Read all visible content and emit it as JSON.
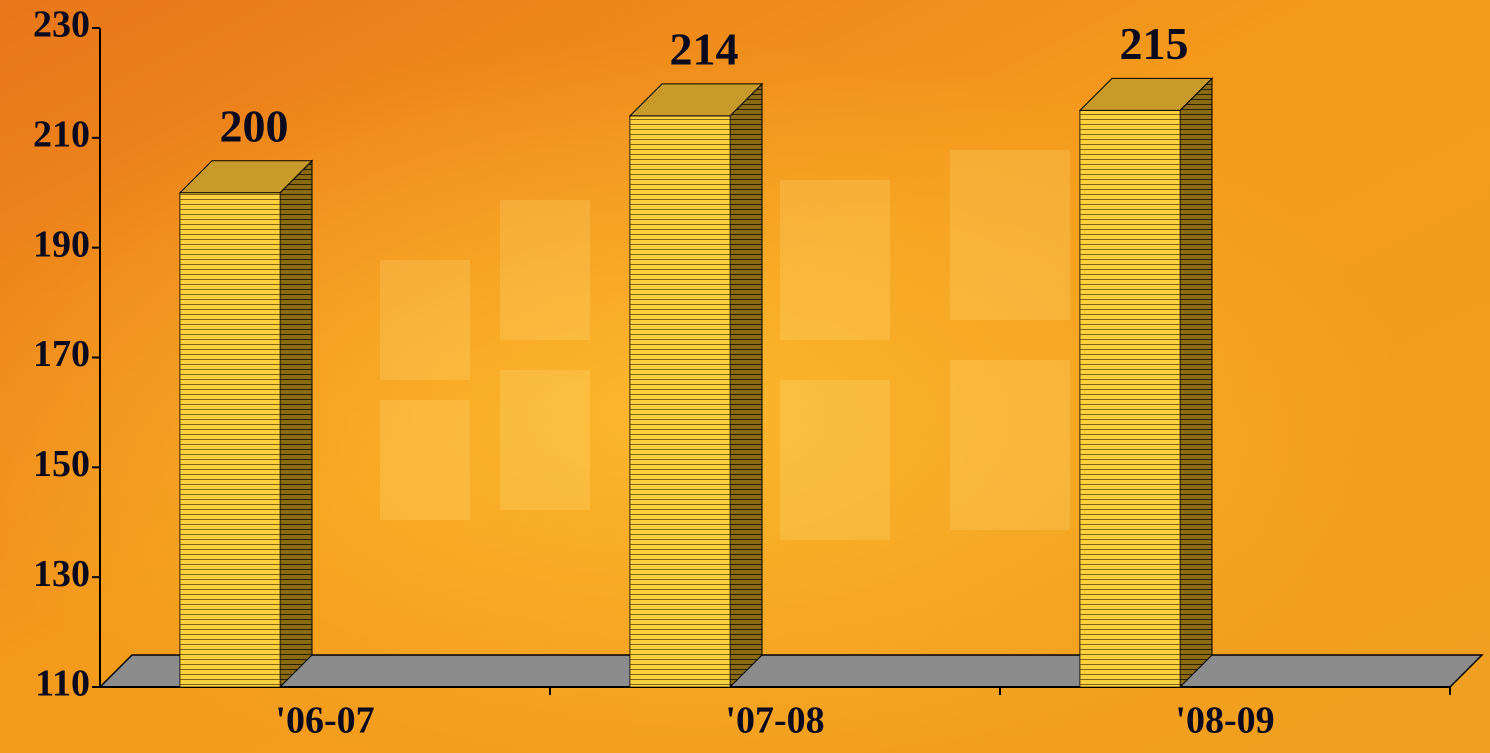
{
  "chart_data": {
    "type": "bar3d",
    "categories": [
      "'06-07",
      "'07-08",
      "'08-09"
    ],
    "values": [
      200,
      214,
      215
    ],
    "color": "#ffd23f",
    "ylim": [
      110,
      230
    ],
    "yticks": [
      110,
      130,
      150,
      170,
      190,
      210,
      230
    ],
    "grid": false
  }
}
